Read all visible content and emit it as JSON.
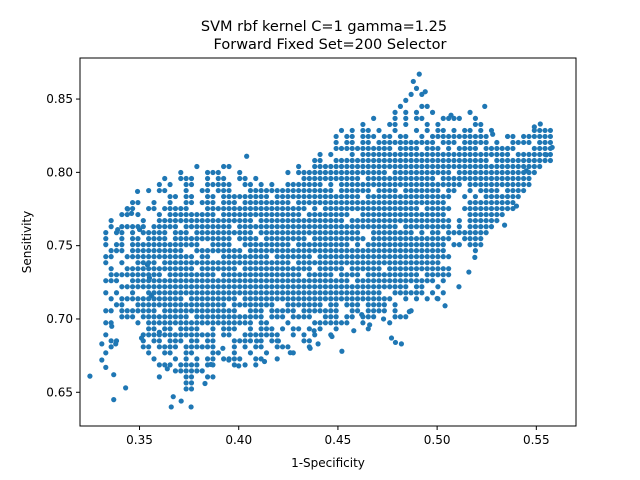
{
  "chart_data": {
    "type": "scatter",
    "title_lines": [
      "SVM rbf kernel C=1 gamma=1.25",
      "Forward Fixed Set=200 Selector"
    ],
    "xlabel": "1-Specificity",
    "ylabel": "Sensitivity",
    "xlim": [
      0.32,
      0.57
    ],
    "ylim": [
      0.627,
      0.878
    ],
    "xticks": [
      "0.35",
      "0.40",
      "0.45",
      "0.50",
      "0.55"
    ],
    "yticks": [
      "0.65",
      "0.70",
      "0.75",
      "0.80",
      "0.85"
    ],
    "xtick_values": [
      0.35,
      0.4,
      0.45,
      0.5,
      0.55
    ],
    "ytick_values": [
      0.65,
      0.7,
      0.75,
      0.8,
      0.85
    ],
    "grid": false,
    "marker_color": "#1f77b4",
    "step": {
      "x": 0.0027,
      "y": 0.0041
    },
    "extra_points": [
      [
        0.325,
        0.661
      ],
      [
        0.331,
        0.683
      ],
      [
        0.331,
        0.672
      ],
      [
        0.333,
        0.667
      ],
      [
        0.336,
        0.695
      ],
      [
        0.337,
        0.645
      ],
      [
        0.337,
        0.662
      ],
      [
        0.338,
        0.683
      ],
      [
        0.339,
        0.761
      ],
      [
        0.343,
        0.653
      ],
      [
        0.344,
        0.775
      ],
      [
        0.346,
        0.772
      ],
      [
        0.349,
        0.787
      ],
      [
        0.35,
        0.761
      ],
      [
        0.351,
        0.687
      ],
      [
        0.354,
        0.737
      ],
      [
        0.355,
        0.728
      ],
      [
        0.356,
        0.716
      ],
      [
        0.36,
        0.691
      ],
      [
        0.364,
        0.666
      ],
      [
        0.366,
        0.64
      ],
      [
        0.367,
        0.647
      ],
      [
        0.371,
        0.644
      ],
      [
        0.376,
        0.64
      ],
      [
        0.383,
        0.656
      ],
      [
        0.386,
        0.669
      ],
      [
        0.392,
        0.68
      ],
      [
        0.395,
        0.672
      ],
      [
        0.4,
        0.668
      ],
      [
        0.404,
        0.811
      ],
      [
        0.409,
        0.685
      ],
      [
        0.413,
        0.671
      ],
      [
        0.42,
        0.685
      ],
      [
        0.426,
        0.677
      ],
      [
        0.436,
        0.68
      ],
      [
        0.438,
        0.692
      ],
      [
        0.44,
        0.683
      ],
      [
        0.447,
        0.688
      ],
      [
        0.452,
        0.678
      ],
      [
        0.458,
        0.692
      ],
      [
        0.462,
        0.703
      ],
      [
        0.466,
        0.696
      ],
      [
        0.473,
        0.7
      ],
      [
        0.477,
        0.687
      ],
      [
        0.479,
        0.684
      ],
      [
        0.482,
        0.683
      ],
      [
        0.486,
        0.705
      ],
      [
        0.488,
        0.862
      ],
      [
        0.491,
        0.867
      ],
      [
        0.494,
        0.855
      ],
      [
        0.5,
        0.714
      ],
      [
        0.504,
        0.709
      ],
      [
        0.507,
        0.839
      ],
      [
        0.511,
        0.722
      ],
      [
        0.516,
        0.732
      ],
      [
        0.519,
        0.742
      ],
      [
        0.524,
        0.845
      ],
      [
        0.528,
        0.826
      ],
      [
        0.534,
        0.764
      ],
      [
        0.54,
        0.777
      ],
      [
        0.545,
        0.801
      ],
      [
        0.549,
        0.831
      ],
      [
        0.552,
        0.833
      ],
      [
        0.555,
        0.812
      ],
      [
        0.558,
        0.817
      ]
    ]
  }
}
